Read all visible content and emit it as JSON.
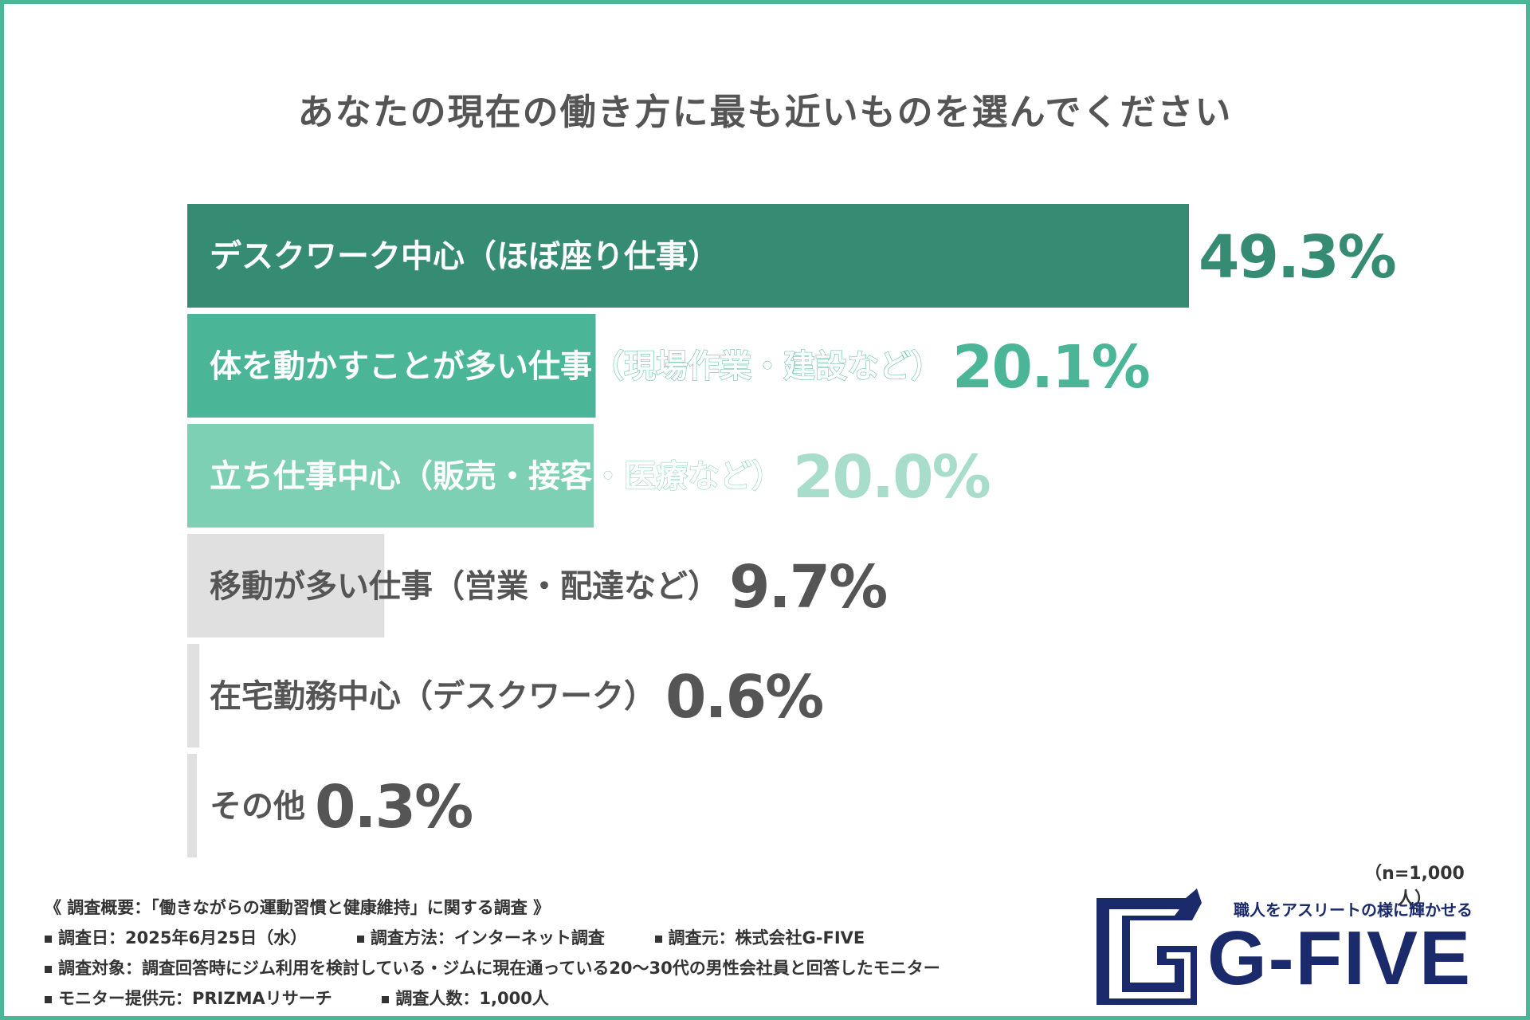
{
  "chart_data": {
    "type": "bar",
    "orientation": "horizontal",
    "title": "あなたの現在の働き方に最も近いものを選んでください",
    "categories": [
      "デスクワーク中心（ほぼ座り仕事）",
      "体を動かすことが多い仕事（現場作業・建設など）",
      "立ち仕事中心（販売・接客・医療など）",
      "移動が多い仕事（営業・配達など）",
      "在宅勤務中心（デスクワーク）",
      "その他"
    ],
    "values": [
      49.3,
      20.1,
      20.0,
      9.7,
      0.6,
      0.3
    ],
    "value_labels": [
      "49.3%",
      "20.1%",
      "20.0%",
      "9.7%",
      "0.6%",
      "0.3%"
    ],
    "bar_colors": [
      "#368c72",
      "#4bb597",
      "#7dd0b4",
      "#e0e0e0",
      "#e0e0e0",
      "#e0e0e0"
    ],
    "value_colors": [
      "#368c72",
      "#4bb597",
      "#a9ddcb",
      "#555555",
      "#555555",
      "#555555"
    ],
    "x_range": [
      0,
      100
    ],
    "unit": "%"
  },
  "sample_size": "（n=1,000人）",
  "footer": {
    "heading": "《 調査概要：「働きながらの運動習慣と健康維持」に関する調査 》",
    "date": "調査日：2025年6月25日（水）",
    "method": "調査方法：インターネット調査",
    "source": "調査元：株式会社G-FIVE",
    "target": "調査対象：調査回答時にジム利用を検討している・ジムに現在通っている20〜30代の男性会社員と回答したモニター",
    "provider": "モニター提供元：PRIZMAリサーチ",
    "count": "調査人数：1,000人"
  },
  "logo": {
    "tagline": "職人をアスリートの様に輝かせる",
    "wordmark": "G-FIVE"
  },
  "colors": {
    "frame": "#4bb597",
    "navy": "#1b2a6b"
  }
}
